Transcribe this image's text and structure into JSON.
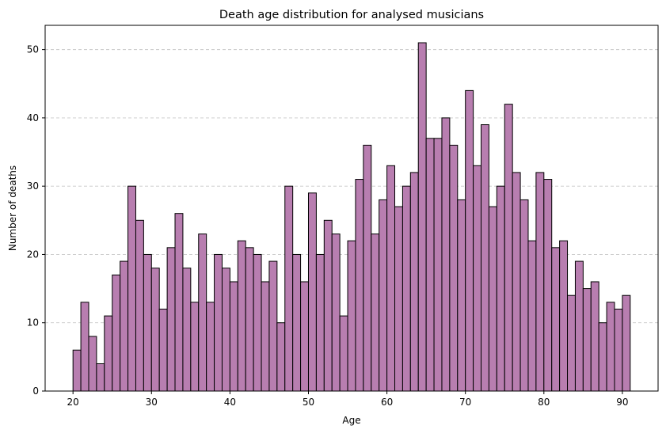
{
  "chart_data": {
    "type": "bar",
    "title": "Death age distribution for analysed musicians",
    "xlabel": "Age",
    "ylabel": "Number of deaths",
    "xlim": [
      16.45,
      94.55
    ],
    "ylim": [
      0,
      53.55
    ],
    "xticks": [
      20,
      30,
      40,
      50,
      60,
      70,
      80,
      90
    ],
    "yticks": [
      0,
      10,
      20,
      30,
      40,
      50
    ],
    "grid": "y-dashed",
    "bin_start": 20,
    "bin_width": 1,
    "values": [
      6,
      13,
      8,
      4,
      11,
      17,
      19,
      30,
      25,
      20,
      18,
      12,
      21,
      26,
      18,
      13,
      23,
      13,
      20,
      18,
      16,
      22,
      21,
      20,
      16,
      19,
      10,
      30,
      20,
      16,
      29,
      20,
      25,
      23,
      11,
      22,
      31,
      36,
      23,
      28,
      33,
      27,
      30,
      32,
      51,
      37,
      37,
      40,
      36,
      28,
      44,
      33,
      39,
      27,
      30,
      42,
      32,
      28,
      22,
      32,
      31,
      21,
      22,
      14,
      19,
      15,
      16,
      10,
      13,
      12,
      14
    ],
    "colors": {
      "bar_fill": "#b87eb0",
      "bar_edge": "#000000",
      "grid": "#c8c8c8"
    }
  }
}
